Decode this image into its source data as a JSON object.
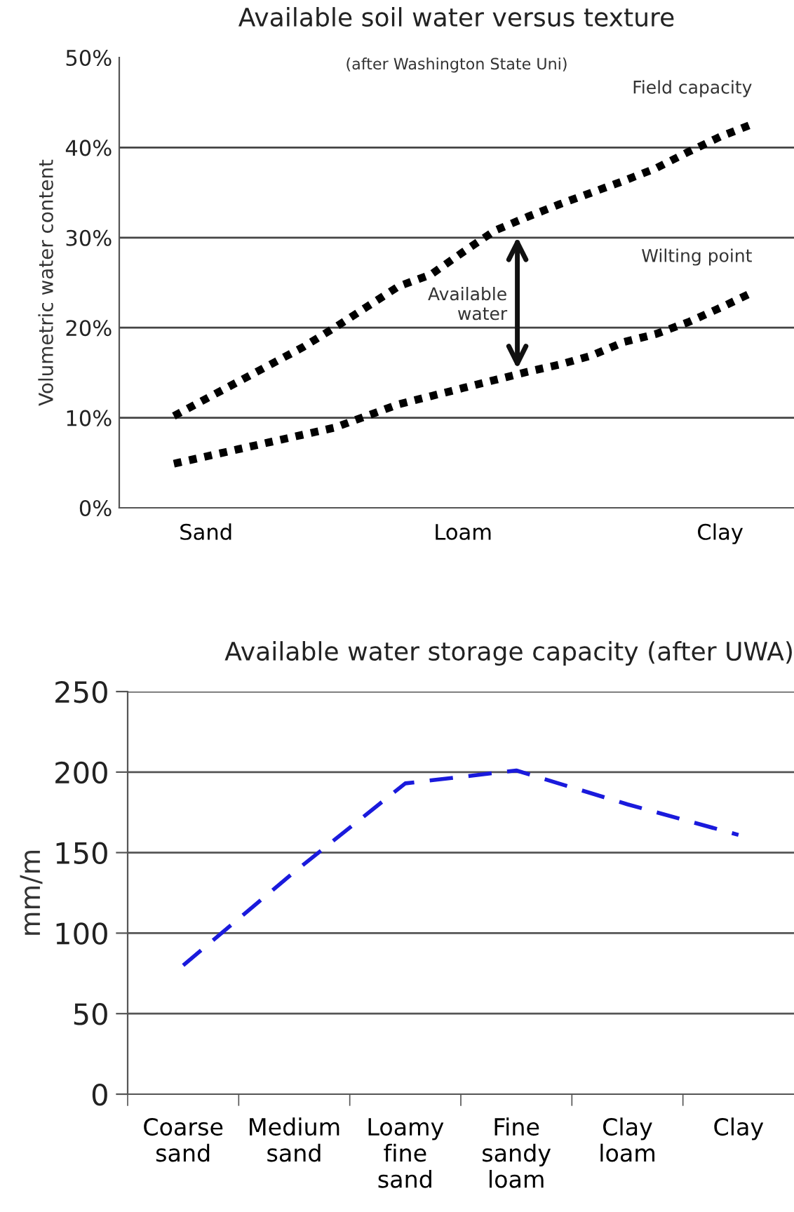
{
  "chart_data": [
    {
      "type": "line",
      "title": "Available soil water versus texture",
      "subtitle": "(after Washington State Uni)",
      "ylabel": "Volumetric water content",
      "categories": [
        null,
        "Sand",
        null,
        null,
        null,
        null,
        null,
        null,
        null,
        "Loam",
        null,
        null,
        null,
        null,
        null,
        null,
        null,
        "Clay",
        null
      ],
      "ylim": [
        0,
        50
      ],
      "yticks": [
        {
          "value": 0,
          "label": "0%"
        },
        {
          "value": 10,
          "label": "10%"
        },
        {
          "value": 20,
          "label": "20%"
        },
        {
          "value": 30,
          "label": "30%"
        },
        {
          "value": 40,
          "label": "40%"
        },
        {
          "value": 50,
          "label": "50%"
        }
      ],
      "grid": "y",
      "line_style": "dotted",
      "marker": "none",
      "series": [
        {
          "name": "Field capacity",
          "color": "#000000",
          "values": [
            10.2,
            12.1,
            14.0,
            15.9,
            17.8,
            20.0,
            22.3,
            24.6,
            25.9,
            28.4,
            30.8,
            32.3,
            33.7,
            35.0,
            36.3,
            37.7,
            39.5,
            41.2,
            42.6
          ]
        },
        {
          "name": "Wilting point",
          "color": "#000000",
          "values": [
            4.9,
            5.7,
            6.5,
            7.3,
            8.1,
            8.9,
            10.2,
            11.5,
            12.4,
            13.3,
            14.2,
            15.1,
            15.9,
            16.9,
            18.4,
            19.3,
            20.6,
            22.2,
            23.9
          ]
        }
      ],
      "annotations": [
        "Available\nwater"
      ]
    },
    {
      "type": "line",
      "title": "Available water storage capacity (after UWA)",
      "ylabel": "mm/m",
      "categories": [
        "Coarse\nsand",
        "Medium\nsand",
        "Loamy\nfine\nsand",
        "Fine\nsandy\nloam",
        "Clay\nloam",
        "Clay"
      ],
      "ylim": [
        0,
        250
      ],
      "yticks": [
        0,
        50,
        100,
        150,
        200,
        250
      ],
      "grid": "y",
      "line_style": "dashed",
      "marker": "none",
      "series": [
        {
          "color": "#1a1adc",
          "values": [
            80,
            138,
            193,
            201,
            180,
            161
          ]
        }
      ]
    }
  ]
}
